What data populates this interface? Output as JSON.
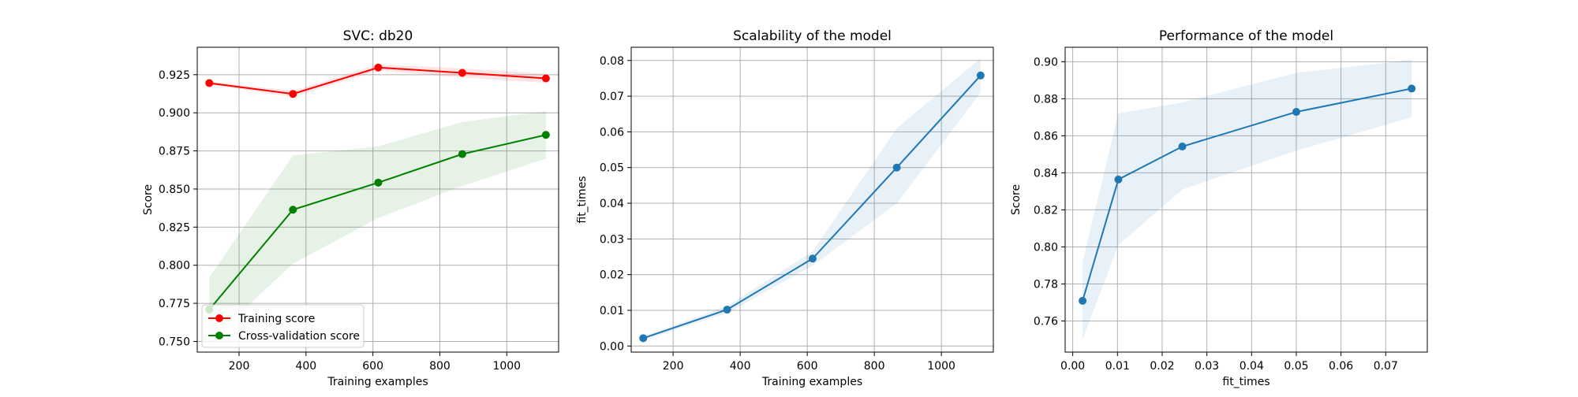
{
  "chart_data": [
    {
      "type": "line",
      "title": "SVC: db20",
      "xlabel": "Training examples",
      "ylabel": "Score",
      "xlim": [
        75,
        1155
      ],
      "ylim": [
        0.743,
        0.943
      ],
      "xticks": [
        "200",
        "400",
        "600",
        "800",
        "1000"
      ],
      "xtick_values": [
        200,
        400,
        600,
        800,
        1000
      ],
      "yticks": [
        "0.750",
        "0.775",
        "0.800",
        "0.825",
        "0.850",
        "0.875",
        "0.900",
        "0.925"
      ],
      "ytick_values": [
        0.75,
        0.775,
        0.8,
        0.825,
        0.85,
        0.875,
        0.9,
        0.925
      ],
      "grid": true,
      "legend_position": "lower-left",
      "series": [
        {
          "name": "Training score",
          "color": "#ff0000",
          "x": [
            111,
            361,
            616,
            867,
            1117
          ],
          "values": [
            0.9195,
            0.9124,
            0.9297,
            0.9262,
            0.9226
          ],
          "band_lower": [
            0.9185,
            0.9104,
            0.9277,
            0.9232,
            0.9196
          ],
          "band_upper": [
            0.9205,
            0.9144,
            0.9317,
            0.9292,
            0.9256
          ]
        },
        {
          "name": "Cross-validation score",
          "color": "#008000",
          "x": [
            111,
            361,
            616,
            867,
            1117
          ],
          "values": [
            0.7709,
            0.8364,
            0.8542,
            0.8729,
            0.8855
          ],
          "band_lower": [
            0.75,
            0.801,
            0.831,
            0.852,
            0.87
          ],
          "band_upper": [
            0.792,
            0.872,
            0.878,
            0.894,
            0.901
          ]
        }
      ]
    },
    {
      "type": "line",
      "title": "Scalability of the model",
      "xlabel": "Training examples",
      "ylabel": "fit_times",
      "xlim": [
        75,
        1155
      ],
      "ylim": [
        -0.0017,
        0.0837
      ],
      "xticks": [
        "200",
        "400",
        "600",
        "800",
        "1000"
      ],
      "xtick_values": [
        200,
        400,
        600,
        800,
        1000
      ],
      "yticks": [
        "0.00",
        "0.01",
        "0.02",
        "0.03",
        "0.04",
        "0.05",
        "0.06",
        "0.07",
        "0.08"
      ],
      "ytick_values": [
        0,
        0.01,
        0.02,
        0.03,
        0.04,
        0.05,
        0.06,
        0.07,
        0.08
      ],
      "grid": true,
      "series": [
        {
          "color": "#1f77b4",
          "x": [
            111,
            361,
            616,
            867,
            1117
          ],
          "values": [
            0.0022,
            0.0102,
            0.0245,
            0.05,
            0.0758
          ],
          "band_lower": [
            0.0017,
            0.0092,
            0.0225,
            0.04,
            0.071
          ],
          "band_upper": [
            0.0027,
            0.0112,
            0.0265,
            0.061,
            0.0806
          ]
        }
      ]
    },
    {
      "type": "line",
      "title": "Performance of the model",
      "xlabel": "fit_times",
      "ylabel": "Score",
      "xlim": [
        -0.0017,
        0.0793
      ],
      "ylim": [
        0.7432,
        0.9078
      ],
      "xticks": [
        "0.00",
        "0.01",
        "0.02",
        "0.03",
        "0.04",
        "0.05",
        "0.06",
        "0.07"
      ],
      "xtick_values": [
        0,
        0.01,
        0.02,
        0.03,
        0.04,
        0.05,
        0.06,
        0.07
      ],
      "yticks": [
        "0.76",
        "0.78",
        "0.80",
        "0.82",
        "0.84",
        "0.86",
        "0.88",
        "0.90"
      ],
      "ytick_values": [
        0.76,
        0.78,
        0.8,
        0.82,
        0.84,
        0.86,
        0.88,
        0.9
      ],
      "grid": true,
      "series": [
        {
          "color": "#1f77b4",
          "x": [
            0.0022,
            0.0102,
            0.0245,
            0.05,
            0.0758
          ],
          "values": [
            0.7709,
            0.8364,
            0.8542,
            0.8729,
            0.8855
          ],
          "band_lower": [
            0.75,
            0.801,
            0.831,
            0.852,
            0.87
          ],
          "band_upper": [
            0.792,
            0.872,
            0.878,
            0.894,
            0.901
          ]
        }
      ]
    }
  ]
}
